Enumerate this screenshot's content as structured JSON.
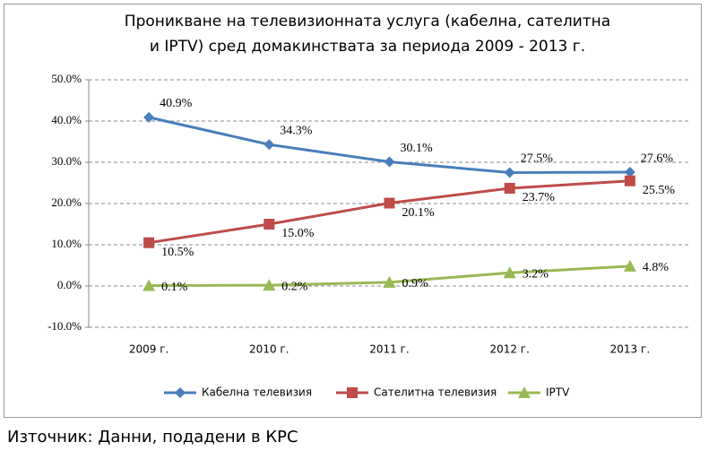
{
  "chart_data": {
    "type": "line",
    "title": [
      "Проникване на телевизионната услуга (кабелна, сателитна",
      "и IPTV) сред домакинствата за периода 2009 - 2013 г."
    ],
    "categories": [
      "2009 г.",
      "2010 г.",
      "2011 г.",
      "2012 г.",
      "2013 г."
    ],
    "series": [
      {
        "name": "Кабелна телевизия",
        "color": "#4a7ebb",
        "marker": "diamond",
        "values": [
          40.9,
          34.3,
          30.1,
          27.5,
          27.6
        ],
        "value_labels": [
          "40.9%",
          "34.3%",
          "30.1%",
          "27.5%",
          "27.6%"
        ]
      },
      {
        "name": "Сателитна телевизия",
        "color": "#be4b48",
        "marker": "square",
        "values": [
          10.5,
          15.0,
          20.1,
          23.7,
          25.5
        ],
        "value_labels": [
          "10.5%",
          "15.0%",
          "20.1%",
          "23.7%",
          "25.5%"
        ]
      },
      {
        "name": "IPTV",
        "color": "#98b954",
        "marker": "triangle",
        "values": [
          0.1,
          0.2,
          0.9,
          3.2,
          4.8
        ],
        "value_labels": [
          "0.1%",
          "0.2%",
          "0.9%",
          "3.2%",
          "4.8%"
        ]
      }
    ],
    "ylim": [
      -10,
      50
    ],
    "yticks": [
      {
        "value": -10,
        "label": "-10.0%"
      },
      {
        "value": 0,
        "label": "0.0%"
      },
      {
        "value": 10,
        "label": "10.0%"
      },
      {
        "value": 20,
        "label": "20.0%"
      },
      {
        "value": 30,
        "label": "30.0%"
      },
      {
        "value": 40,
        "label": "40.0%"
      },
      {
        "value": 50,
        "label": "50.0%"
      }
    ],
    "grid": true,
    "legend": "bottom"
  },
  "source": "Източник:   Данни, подадени в КРС"
}
